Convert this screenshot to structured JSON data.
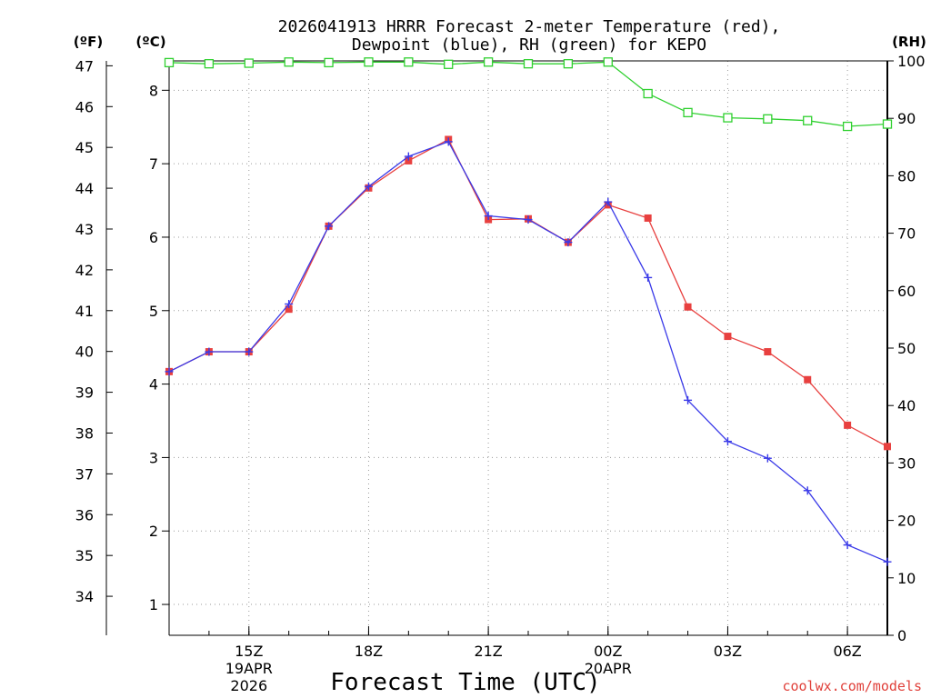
{
  "chart_data": {
    "type": "line",
    "title_line1": "2026041913 HRRR Forecast 2-meter Temperature (red),",
    "title_line2": "Dewpoint (blue), RH (green) for KEPO",
    "xlabel": "Forecast Time (UTC)",
    "credit": "coolwx.com/models",
    "units": {
      "fahrenheit": "(ºF)",
      "celsius": "(ºC)",
      "rh": "(RH)"
    },
    "x_hours": [
      13,
      14,
      15,
      16,
      17,
      18,
      19,
      20,
      21,
      22,
      23,
      24,
      25,
      26,
      27,
      28,
      29,
      30,
      31
    ],
    "x_ticks": [
      {
        "hour": 15,
        "label": "15Z",
        "sub1": "19APR",
        "sub2": "2026"
      },
      {
        "hour": 18,
        "label": "18Z",
        "sub1": "",
        "sub2": ""
      },
      {
        "hour": 21,
        "label": "21Z",
        "sub1": "",
        "sub2": ""
      },
      {
        "hour": 24,
        "label": "00Z",
        "sub1": "20APR",
        "sub2": ""
      },
      {
        "hour": 27,
        "label": "03Z",
        "sub1": "",
        "sub2": ""
      },
      {
        "hour": 30,
        "label": "06Z",
        "sub1": "",
        "sub2": ""
      }
    ],
    "celsius_range": [
      0.58,
      8.4
    ],
    "rh_range": [
      0,
      100
    ],
    "celsius_ticks": [
      1,
      2,
      3,
      4,
      5,
      6,
      7,
      8
    ],
    "fahrenheit_ticks": [
      34,
      35,
      36,
      37,
      38,
      39,
      40,
      41,
      42,
      43,
      44,
      45,
      46,
      47
    ],
    "rh_ticks": [
      0,
      10,
      20,
      30,
      40,
      50,
      60,
      70,
      80,
      90,
      100
    ],
    "series": [
      {
        "name": "Temperature",
        "unit": "C",
        "color": "#e8403f",
        "marker": "square",
        "values": [
          4.17,
          4.44,
          4.44,
          5.02,
          6.15,
          6.67,
          7.04,
          7.33,
          6.24,
          6.25,
          5.93,
          6.44,
          6.26,
          5.05,
          4.65,
          4.44,
          4.06,
          3.44,
          3.15
        ]
      },
      {
        "name": "Dewpoint",
        "unit": "C",
        "color": "#3a3ae8",
        "marker": "plus",
        "values": [
          4.17,
          4.44,
          4.44,
          5.09,
          6.15,
          6.69,
          7.1,
          7.3,
          6.29,
          6.24,
          5.93,
          6.48,
          5.45,
          3.78,
          3.22,
          2.99,
          2.55,
          1.81,
          1.58
        ]
      },
      {
        "name": "RH",
        "unit": "%",
        "color": "#2fd02f",
        "marker": "open-square",
        "values": [
          99.7,
          99.5,
          99.6,
          99.8,
          99.7,
          99.8,
          99.8,
          99.4,
          99.8,
          99.5,
          99.5,
          99.8,
          94.3,
          91.0,
          90.1,
          89.9,
          89.6,
          88.6,
          89.0
        ]
      }
    ]
  }
}
